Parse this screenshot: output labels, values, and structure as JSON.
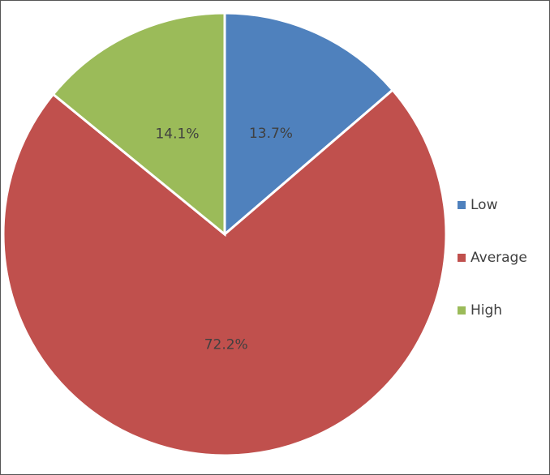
{
  "chart_data": {
    "type": "pie",
    "categories": [
      "Low",
      "Average",
      "High"
    ],
    "values": [
      13.7,
      72.2,
      14.1
    ],
    "value_labels": [
      "13.7%",
      "72.2%",
      "14.1%"
    ],
    "colors": [
      "#4f81bd",
      "#c0504d",
      "#9bbb59"
    ],
    "legend": "right"
  }
}
